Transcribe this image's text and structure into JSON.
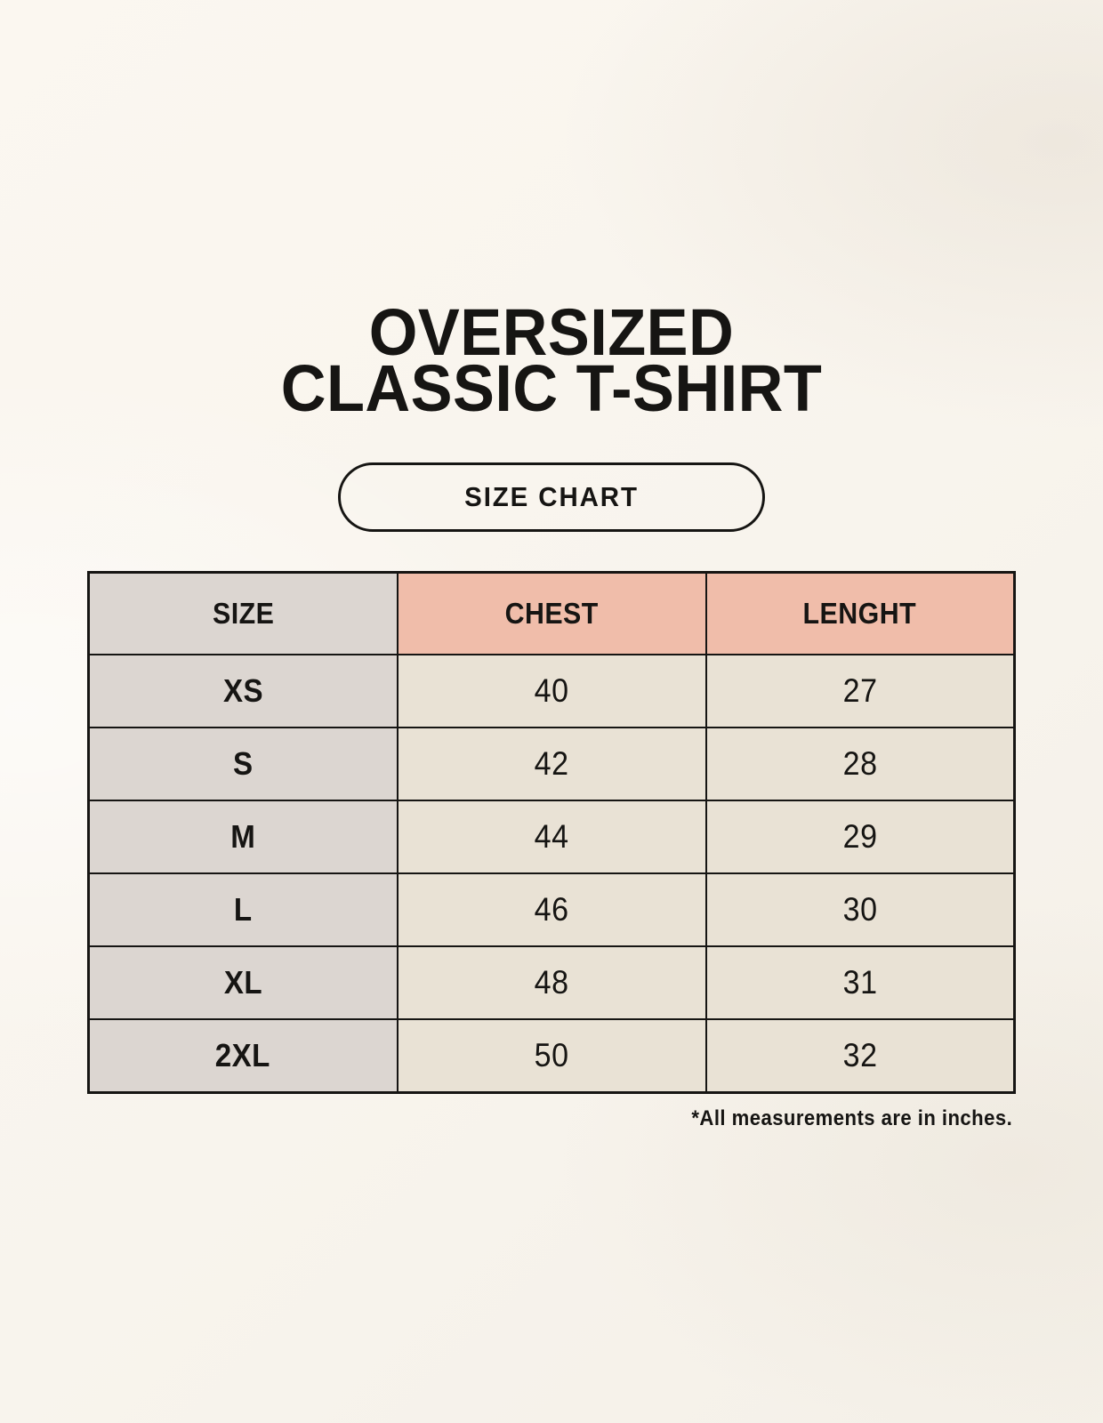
{
  "title": {
    "line1": "OVERSIZED",
    "line2": "CLASSIC T-SHIRT"
  },
  "button": {
    "label": "SIZE CHART"
  },
  "colors": {
    "page_bg": "#f8f4ed",
    "accent_salmon": "#f0bdaa",
    "cell_gray": "#dcd6d1",
    "cell_cream": "#e9e2d5",
    "ink": "#161513"
  },
  "chart_data": {
    "type": "table",
    "columns": [
      "SIZE",
      "CHEST",
      "LENGHT"
    ],
    "rows": [
      [
        "XS",
        "40",
        "27"
      ],
      [
        "S",
        "42",
        "28"
      ],
      [
        "M",
        "44",
        "29"
      ],
      [
        "L",
        "46",
        "30"
      ],
      [
        "XL",
        "48",
        "31"
      ],
      [
        "2XL",
        "50",
        "32"
      ]
    ],
    "units_note": "*All measurements are in inches."
  }
}
